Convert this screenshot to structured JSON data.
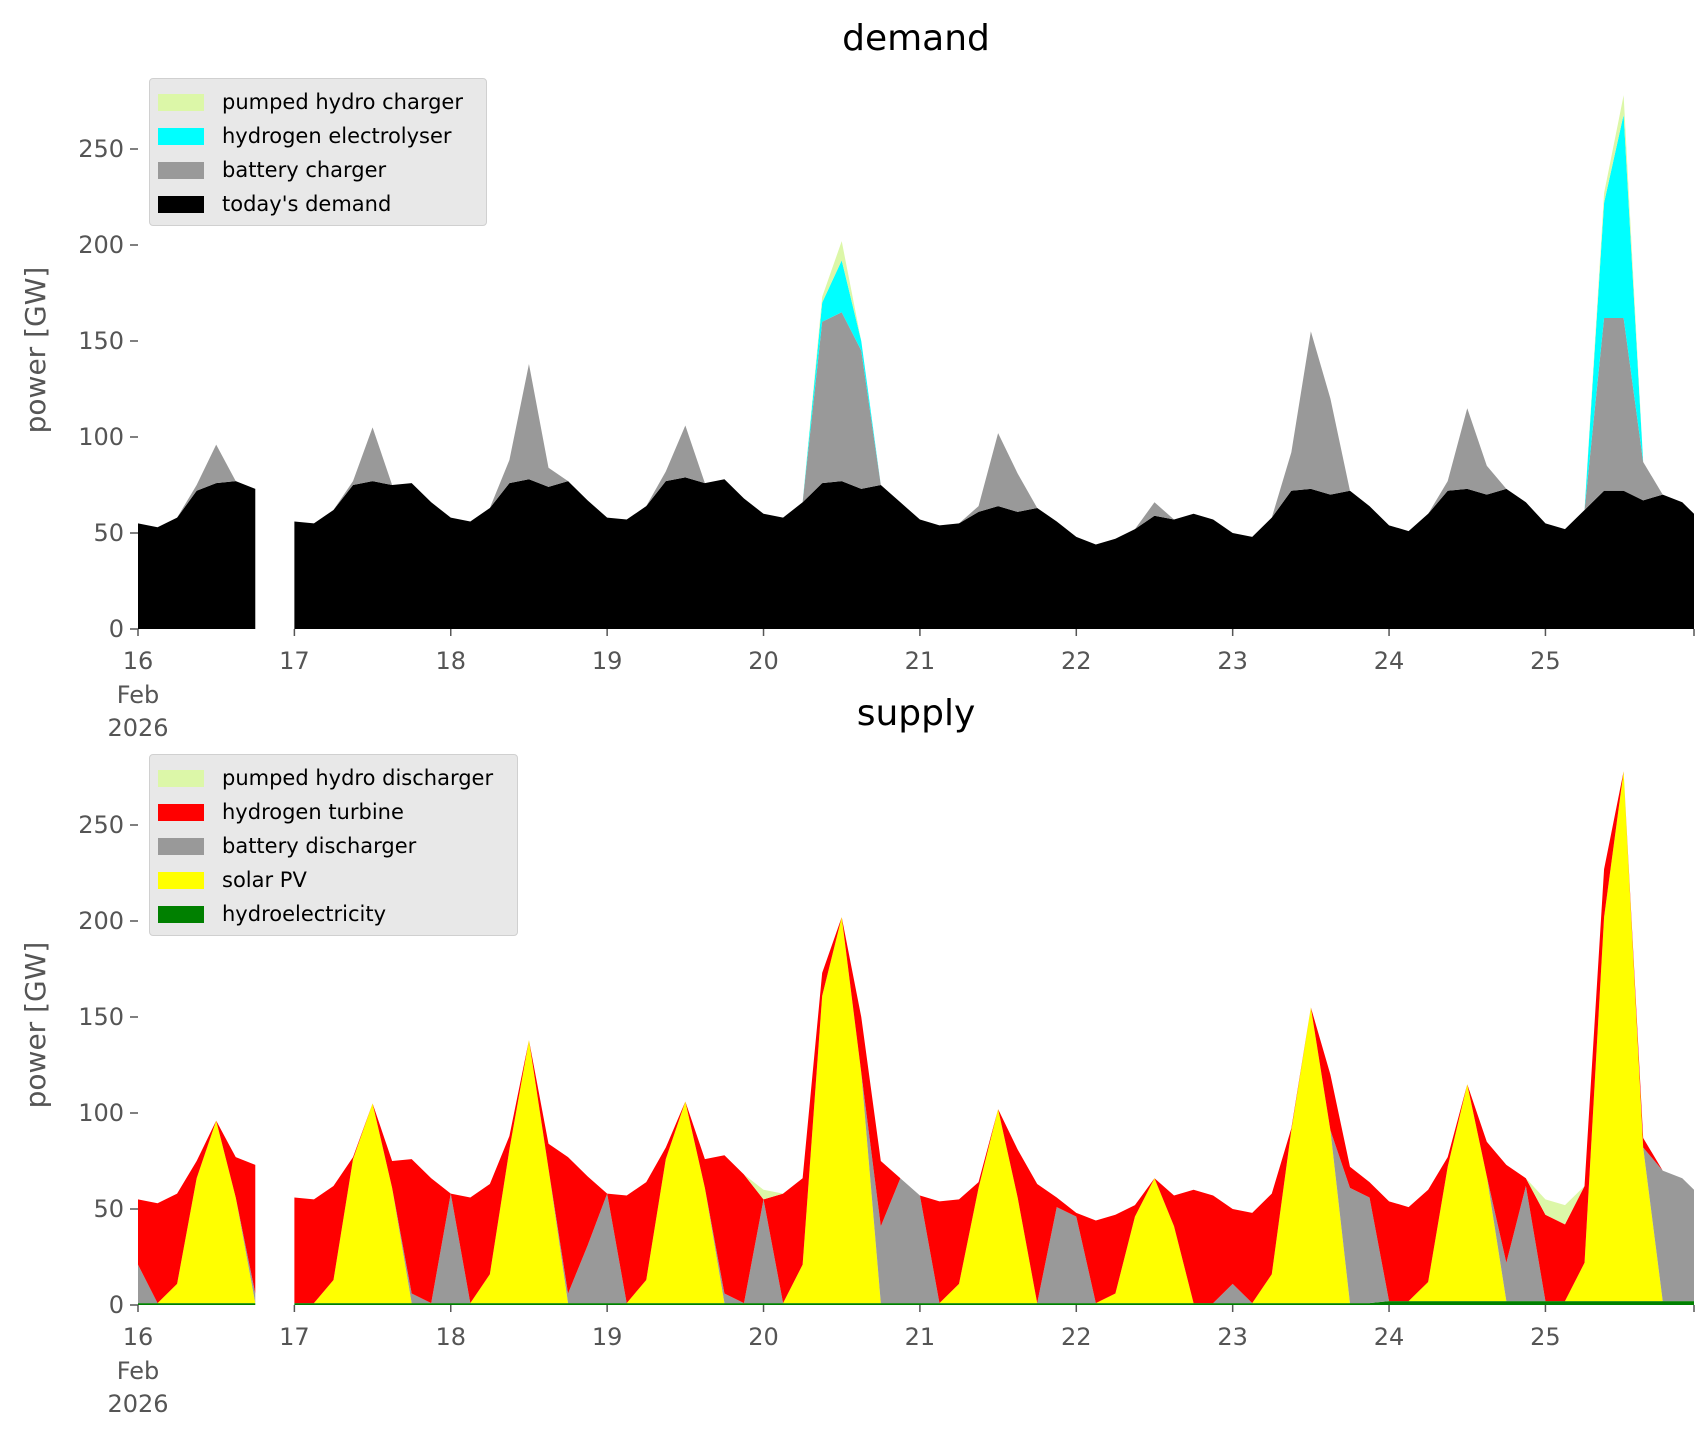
{
  "chart_data": [
    {
      "id": "demand",
      "type": "area",
      "stacked": true,
      "title": "demand",
      "ylabel": "power [GW]",
      "xlabel": "",
      "x_start": "2026-02-16 00:00",
      "x_step_hours": 3,
      "xlim_days": [
        0,
        9.95
      ],
      "ylim": [
        0,
        290
      ],
      "yticks": [
        0,
        50,
        100,
        150,
        200,
        250
      ],
      "xtick_labels": [
        "16",
        "17",
        "18",
        "19",
        "20",
        "21",
        "22",
        "23",
        "24",
        "25"
      ],
      "xtick_sublabels": [
        "Feb",
        "2026"
      ],
      "grid": false,
      "legend_position": "top-left",
      "series": [
        {
          "name": "today's demand",
          "color": "#000000",
          "values": [
            55,
            53,
            58,
            72,
            76,
            77,
            73,
            null,
            56,
            55,
            62,
            75,
            77,
            75,
            76,
            66,
            58,
            56,
            63,
            76,
            78,
            74,
            77,
            67,
            58,
            57,
            64,
            77,
            79,
            76,
            78,
            68,
            60,
            58,
            66,
            76,
            77,
            73,
            75,
            66,
            57,
            54,
            55,
            61,
            64,
            61,
            63,
            56,
            48,
            44,
            47,
            52,
            59,
            57,
            60,
            57,
            50,
            48,
            58,
            72,
            73,
            70,
            72,
            64,
            54,
            51,
            60,
            72,
            73,
            70,
            73,
            66,
            55,
            52,
            62,
            72,
            72,
            67,
            70,
            66,
            56
          ]
        },
        {
          "name": "battery charger",
          "color": "#999999",
          "values": [
            0,
            0,
            0,
            3,
            20,
            0,
            0,
            null,
            0,
            0,
            0,
            2,
            28,
            0,
            0,
            0,
            0,
            0,
            0,
            12,
            60,
            10,
            0,
            0,
            0,
            0,
            0,
            5,
            27,
            0,
            0,
            0,
            0,
            0,
            0,
            84,
            88,
            72,
            0,
            0,
            0,
            0,
            0,
            3,
            38,
            20,
            0,
            0,
            0,
            0,
            0,
            0,
            7,
            0,
            0,
            0,
            0,
            0,
            0,
            20,
            82,
            50,
            0,
            0,
            0,
            0,
            0,
            5,
            42,
            15,
            0,
            0,
            0,
            0,
            0,
            90,
            90,
            20,
            0,
            0,
            0
          ]
        },
        {
          "name": "hydrogen electrolyser",
          "color": "#00ffff",
          "values": [
            0,
            0,
            0,
            0,
            0,
            0,
            0,
            null,
            0,
            0,
            0,
            0,
            0,
            0,
            0,
            0,
            0,
            0,
            0,
            0,
            0,
            0,
            0,
            0,
            0,
            0,
            0,
            0,
            0,
            0,
            0,
            0,
            0,
            0,
            0,
            10,
            27,
            5,
            0,
            0,
            0,
            0,
            0,
            0,
            0,
            0,
            0,
            0,
            0,
            0,
            0,
            0,
            0,
            0,
            0,
            0,
            0,
            0,
            0,
            0,
            0,
            0,
            0,
            0,
            0,
            0,
            0,
            0,
            0,
            0,
            0,
            0,
            0,
            0,
            0,
            60,
            106,
            0,
            0,
            0,
            0
          ]
        },
        {
          "name": "pumped hydro charger",
          "color": "#dcf7a8",
          "values": [
            0,
            0,
            0,
            0,
            0,
            0,
            0,
            null,
            0,
            0,
            0,
            0,
            0,
            0,
            0,
            0,
            0,
            0,
            0,
            0,
            0,
            0,
            0,
            0,
            0,
            0,
            0,
            0,
            0,
            0,
            0,
            0,
            0,
            0,
            0,
            3,
            10,
            0,
            0,
            0,
            0,
            0,
            0,
            0,
            0,
            0,
            0,
            0,
            0,
            0,
            0,
            0,
            0,
            0,
            0,
            0,
            0,
            0,
            0,
            0,
            0,
            0,
            0,
            0,
            0,
            0,
            0,
            0,
            0,
            0,
            0,
            0,
            0,
            0,
            0,
            5,
            10,
            0,
            0,
            0,
            0
          ]
        }
      ]
    },
    {
      "id": "supply",
      "type": "area",
      "stacked": true,
      "title": "supply",
      "ylabel": "power [GW]",
      "xlabel": "",
      "x_start": "2026-02-16 00:00",
      "x_step_hours": 3,
      "xlim_days": [
        0,
        9.95
      ],
      "ylim": [
        0,
        290
      ],
      "yticks": [
        0,
        50,
        100,
        150,
        200,
        250
      ],
      "xtick_labels": [
        "16",
        "17",
        "18",
        "19",
        "20",
        "21",
        "22",
        "23",
        "24",
        "25"
      ],
      "xtick_sublabels": [
        "Feb",
        "2026"
      ],
      "grid": false,
      "legend_position": "top-left",
      "series": [
        {
          "name": "hydroelectricity",
          "color": "#008000",
          "values": [
            1,
            1,
            1,
            1,
            1,
            1,
            1,
            null,
            1,
            1,
            1,
            1,
            1,
            1,
            1,
            1,
            1,
            1,
            1,
            1,
            1,
            1,
            1,
            1,
            1,
            1,
            1,
            1,
            1,
            1,
            1,
            1,
            1,
            1,
            1,
            1,
            1,
            1,
            1,
            1,
            1,
            1,
            1,
            1,
            1,
            1,
            1,
            1,
            1,
            1,
            1,
            1,
            1,
            1,
            1,
            1,
            1,
            1,
            1,
            1,
            1,
            1,
            1,
            1,
            2,
            2,
            2,
            2,
            2,
            2,
            2,
            2,
            2,
            2,
            2,
            2,
            2,
            2,
            2,
            2,
            2
          ]
        },
        {
          "name": "solar PV",
          "color": "#ffff00",
          "values": [
            0,
            0,
            10,
            65,
            95,
            55,
            0,
            null,
            0,
            0,
            12,
            75,
            104,
            60,
            0,
            0,
            0,
            0,
            15,
            80,
            137,
            70,
            0,
            0,
            0,
            0,
            12,
            75,
            105,
            60,
            0,
            0,
            0,
            0,
            20,
            160,
            201,
            120,
            0,
            0,
            0,
            0,
            10,
            60,
            101,
            55,
            0,
            0,
            0,
            0,
            5,
            45,
            65,
            40,
            0,
            0,
            0,
            0,
            15,
            90,
            154,
            90,
            0,
            0,
            0,
            0,
            10,
            70,
            113,
            65,
            0,
            0,
            0,
            0,
            20,
            200,
            276,
            80,
            0,
            0,
            0
          ]
        },
        {
          "name": "battery discharger",
          "color": "#999999",
          "values": [
            20,
            0,
            0,
            0,
            0,
            0,
            5,
            null,
            0,
            0,
            0,
            0,
            0,
            0,
            5,
            0,
            57,
            0,
            0,
            0,
            0,
            0,
            5,
            30,
            57,
            0,
            0,
            0,
            0,
            0,
            5,
            0,
            54,
            0,
            0,
            0,
            0,
            0,
            40,
            65,
            56,
            0,
            0,
            0,
            0,
            0,
            0,
            50,
            45,
            0,
            0,
            0,
            0,
            0,
            0,
            0,
            10,
            0,
            0,
            0,
            0,
            0,
            60,
            55,
            0,
            0,
            0,
            0,
            0,
            0,
            20,
            60,
            0,
            0,
            0,
            0,
            0,
            0,
            68,
            64,
            54
          ]
        },
        {
          "name": "hydrogen turbine",
          "color": "#ff0000",
          "values": [
            34,
            52,
            47,
            9,
            0,
            21,
            67,
            null,
            55,
            54,
            49,
            1,
            0,
            14,
            70,
            65,
            0,
            55,
            47,
            7,
            0,
            13,
            71,
            36,
            0,
            56,
            51,
            6,
            0,
            15,
            72,
            67,
            0,
            57,
            45,
            12,
            0,
            29,
            34,
            0,
            0,
            53,
            44,
            3,
            0,
            25,
            62,
            5,
            2,
            43,
            41,
            6,
            0,
            16,
            59,
            56,
            39,
            47,
            42,
            1,
            0,
            29,
            11,
            8,
            52,
            49,
            48,
            5,
            0,
            18,
            51,
            4,
            45,
            40,
            40,
            25,
            0,
            5,
            0,
            0,
            0
          ]
        },
        {
          "name": "pumped hydro discharger",
          "color": "#dcf7a8",
          "values": [
            0,
            0,
            0,
            0,
            0,
            0,
            0,
            null,
            0,
            0,
            0,
            0,
            0,
            0,
            0,
            0,
            0,
            0,
            0,
            0,
            0,
            0,
            0,
            0,
            0,
            0,
            0,
            0,
            0,
            0,
            0,
            0,
            5,
            0,
            0,
            0,
            0,
            0,
            0,
            0,
            0,
            0,
            0,
            0,
            0,
            0,
            0,
            0,
            0,
            0,
            0,
            0,
            0,
            0,
            0,
            0,
            0,
            0,
            0,
            0,
            0,
            0,
            0,
            0,
            0,
            0,
            0,
            0,
            0,
            0,
            0,
            0,
            8,
            10,
            0,
            0,
            0,
            0,
            0,
            0,
            0
          ]
        }
      ]
    }
  ]
}
